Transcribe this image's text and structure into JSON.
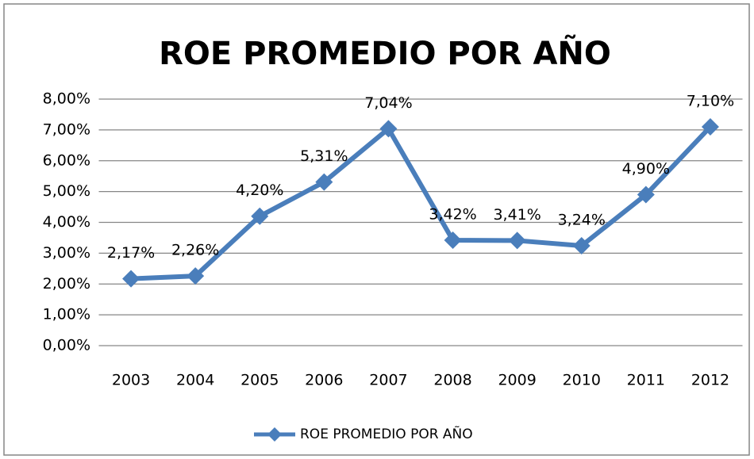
{
  "chart_data": {
    "type": "line",
    "title": "ROE PROMEDIO POR AÑO",
    "categories": [
      "2003",
      "2004",
      "2005",
      "2006",
      "2007",
      "2008",
      "2009",
      "2010",
      "2011",
      "2012"
    ],
    "series": [
      {
        "name": "ROE PROMEDIO POR AÑO",
        "color": "#4a7ebb",
        "values": [
          2.17,
          2.26,
          4.2,
          5.31,
          7.04,
          3.42,
          3.41,
          3.24,
          4.9,
          7.1
        ],
        "value_labels": [
          "2,17%",
          "2,26%",
          "4,20%",
          "5,31%",
          "7,04%",
          "3,42%",
          "3,41%",
          "3,24%",
          "4,90%",
          "7,10%"
        ]
      }
    ],
    "ylim": [
      0,
      8
    ],
    "yticks": [
      {
        "value": 0,
        "label": "0,00%"
      },
      {
        "value": 1,
        "label": "1,00%"
      },
      {
        "value": 2,
        "label": "2,00%"
      },
      {
        "value": 3,
        "label": "3,00%"
      },
      {
        "value": 4,
        "label": "4,00%"
      },
      {
        "value": 5,
        "label": "5,00%"
      },
      {
        "value": 6,
        "label": "6,00%"
      },
      {
        "value": 7,
        "label": "7,00%"
      },
      {
        "value": 8,
        "label": "8,00%"
      }
    ],
    "grid": true,
    "legend": "bottom"
  }
}
